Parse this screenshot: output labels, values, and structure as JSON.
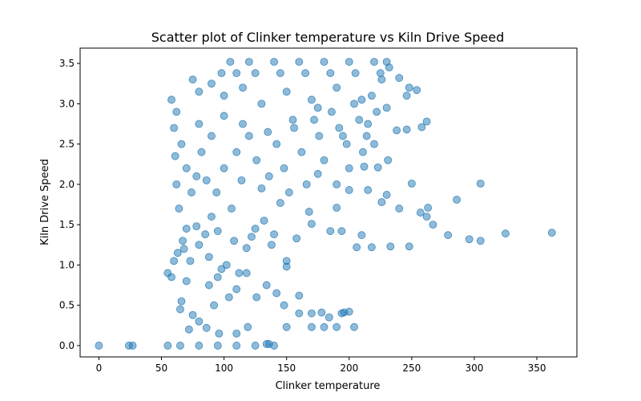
{
  "chart_data": {
    "type": "scatter",
    "title": "Scatter plot of Clinker temperature vs Kiln Drive Speed",
    "xlabel": "Clinker temperature",
    "ylabel": "Kiln Drive Speed",
    "xlim": [
      -15,
      382
    ],
    "ylim": [
      -0.14,
      3.69
    ],
    "xticks": [
      "0",
      "50",
      "100",
      "150",
      "200",
      "250",
      "300",
      "350"
    ],
    "yticks": [
      "0.0",
      "0.5",
      "1.0",
      "1.5",
      "2.0",
      "2.5",
      "3.0",
      "3.5"
    ],
    "grid": false,
    "marker_color": "#1f77b4",
    "marker_alpha": 0.5,
    "series": [
      {
        "points": [
          [
            0,
            0
          ],
          [
            24,
            0
          ],
          [
            27,
            0
          ],
          [
            362,
            1.4
          ],
          [
            325,
            1.39
          ],
          [
            305,
            1.3
          ],
          [
            305,
            2.01
          ],
          [
            296,
            1.32
          ],
          [
            286,
            1.81
          ],
          [
            279,
            1.37
          ],
          [
            267,
            1.5
          ],
          [
            263,
            1.71
          ],
          [
            262,
            1.6
          ],
          [
            257,
            1.65
          ],
          [
            250,
            2.01
          ],
          [
            248,
            1.23
          ],
          [
            240,
            1.7
          ],
          [
            233,
            1.23
          ],
          [
            226,
            1.78
          ],
          [
            218,
            1.22
          ],
          [
            210,
            1.37
          ],
          [
            206,
            1.22
          ],
          [
            204,
            0.23
          ],
          [
            200,
            0.42
          ],
          [
            196,
            0.41
          ],
          [
            194,
            1.42
          ],
          [
            190,
            1.71
          ],
          [
            185,
            1.42
          ],
          [
            178,
            0.41
          ],
          [
            170,
            1.51
          ],
          [
            150,
            0.98
          ],
          [
            60,
            1.05
          ],
          [
            65,
            0.45
          ],
          [
            66,
            0.55
          ],
          [
            72,
            0.2
          ],
          [
            86,
            0.22
          ],
          [
            96,
            0.15
          ],
          [
            110,
            0.15
          ],
          [
            119,
            0.23
          ],
          [
            134,
            0.02
          ],
          [
            136,
            0.02
          ],
          [
            150,
            1.05
          ],
          [
            160,
            0.62
          ],
          [
            184,
            0.35
          ],
          [
            194,
            0.4
          ],
          [
            200,
            2.2
          ],
          [
            212,
            2.22
          ],
          [
            223,
            2.21
          ],
          [
            231,
            2.3
          ],
          [
            238,
            2.67
          ],
          [
            246,
            2.68
          ],
          [
            258,
            2.71
          ],
          [
            262,
            2.78
          ],
          [
            248,
            3.2
          ],
          [
            254,
            3.17
          ],
          [
            240,
            3.32
          ],
          [
            232,
            3.45
          ],
          [
            246,
            3.1
          ],
          [
            230,
            2.95
          ],
          [
            220,
            2.5
          ],
          [
            211,
            2.4
          ],
          [
            215,
            1.93
          ],
          [
            230,
            1.87
          ],
          [
            200,
            1.93
          ],
          [
            190,
            2.0
          ],
          [
            175,
            2.13
          ],
          [
            168,
            1.66
          ],
          [
            158,
            1.33
          ],
          [
            145,
            1.77
          ],
          [
            140,
            1.38
          ],
          [
            132,
            1.55
          ],
          [
            125,
            1.45
          ],
          [
            118,
            1.21
          ],
          [
            112,
            0.9
          ],
          [
            104,
            0.6
          ],
          [
            98,
            0.95
          ],
          [
            92,
            0.5
          ],
          [
            88,
            0.75
          ],
          [
            80,
            0.3
          ],
          [
            75,
            0.38
          ],
          [
            70,
            0.8
          ],
          [
            68,
            1.2
          ],
          [
            64,
            1.7
          ],
          [
            62,
            2.0
          ],
          [
            61,
            2.35
          ],
          [
            60,
            2.7
          ],
          [
            58,
            3.05
          ],
          [
            62,
            2.9
          ],
          [
            66,
            2.5
          ],
          [
            70,
            2.2
          ],
          [
            74,
            1.9
          ],
          [
            78,
            2.1
          ],
          [
            82,
            2.4
          ],
          [
            86,
            2.05
          ],
          [
            90,
            1.6
          ],
          [
            94,
            1.9
          ],
          [
            100,
            2.2
          ],
          [
            106,
            1.7
          ],
          [
            110,
            2.4
          ],
          [
            114,
            2.05
          ],
          [
            120,
            2.6
          ],
          [
            126,
            2.3
          ],
          [
            130,
            1.95
          ],
          [
            136,
            2.1
          ],
          [
            142,
            2.5
          ],
          [
            148,
            2.2
          ],
          [
            152,
            1.9
          ],
          [
            156,
            2.7
          ],
          [
            162,
            2.4
          ],
          [
            166,
            2.0
          ],
          [
            172,
            2.8
          ],
          [
            176,
            2.6
          ],
          [
            180,
            2.3
          ],
          [
            186,
            2.9
          ],
          [
            192,
            2.7
          ],
          [
            198,
            2.5
          ],
          [
            204,
            3.0
          ],
          [
            208,
            2.8
          ],
          [
            214,
            2.6
          ],
          [
            218,
            3.1
          ],
          [
            222,
            2.9
          ],
          [
            226,
            3.3
          ],
          [
            105,
            3.52
          ],
          [
            120,
            3.52
          ],
          [
            140,
            3.52
          ],
          [
            160,
            3.52
          ],
          [
            180,
            3.52
          ],
          [
            200,
            3.52
          ],
          [
            220,
            3.52
          ],
          [
            230,
            3.52
          ],
          [
            98,
            3.38
          ],
          [
            110,
            3.38
          ],
          [
            125,
            3.38
          ],
          [
            145,
            3.38
          ],
          [
            165,
            3.38
          ],
          [
            185,
            3.38
          ],
          [
            205,
            3.38
          ],
          [
            225,
            3.38
          ],
          [
            75,
            3.3
          ],
          [
            80,
            3.15
          ],
          [
            90,
            3.25
          ],
          [
            100,
            3.1
          ],
          [
            115,
            3.2
          ],
          [
            130,
            3.0
          ],
          [
            150,
            3.15
          ],
          [
            170,
            3.05
          ],
          [
            190,
            3.2
          ],
          [
            210,
            3.05
          ],
          [
            80,
            2.75
          ],
          [
            90,
            2.6
          ],
          [
            100,
            2.85
          ],
          [
            115,
            2.75
          ],
          [
            135,
            2.65
          ],
          [
            155,
            2.8
          ],
          [
            175,
            2.95
          ],
          [
            195,
            2.6
          ],
          [
            215,
            2.75
          ],
          [
            70,
            1.45
          ],
          [
            78,
            1.48
          ],
          [
            85,
            1.38
          ],
          [
            95,
            1.42
          ],
          [
            108,
            1.3
          ],
          [
            122,
            1.35
          ],
          [
            138,
            1.25
          ],
          [
            55,
            0.9
          ],
          [
            58,
            0.85
          ],
          [
            63,
            1.15
          ],
          [
            67,
            1.3
          ],
          [
            73,
            1.05
          ],
          [
            80,
            1.25
          ],
          [
            88,
            1.1
          ],
          [
            95,
            0.85
          ],
          [
            102,
            1.0
          ],
          [
            110,
            0.7
          ],
          [
            118,
            0.9
          ],
          [
            126,
            0.6
          ],
          [
            134,
            0.75
          ],
          [
            142,
            0.65
          ],
          [
            148,
            0.5
          ],
          [
            160,
            0.4
          ],
          [
            170,
            0.4
          ],
          [
            150,
            0.23
          ],
          [
            170,
            0.23
          ],
          [
            180,
            0.23
          ],
          [
            190,
            0.23
          ],
          [
            55,
            0.0
          ],
          [
            65,
            0.0
          ],
          [
            80,
            0.0
          ],
          [
            95,
            0.0
          ],
          [
            110,
            0.0
          ],
          [
            125,
            0.0
          ],
          [
            140,
            0.0
          ]
        ]
      }
    ]
  }
}
